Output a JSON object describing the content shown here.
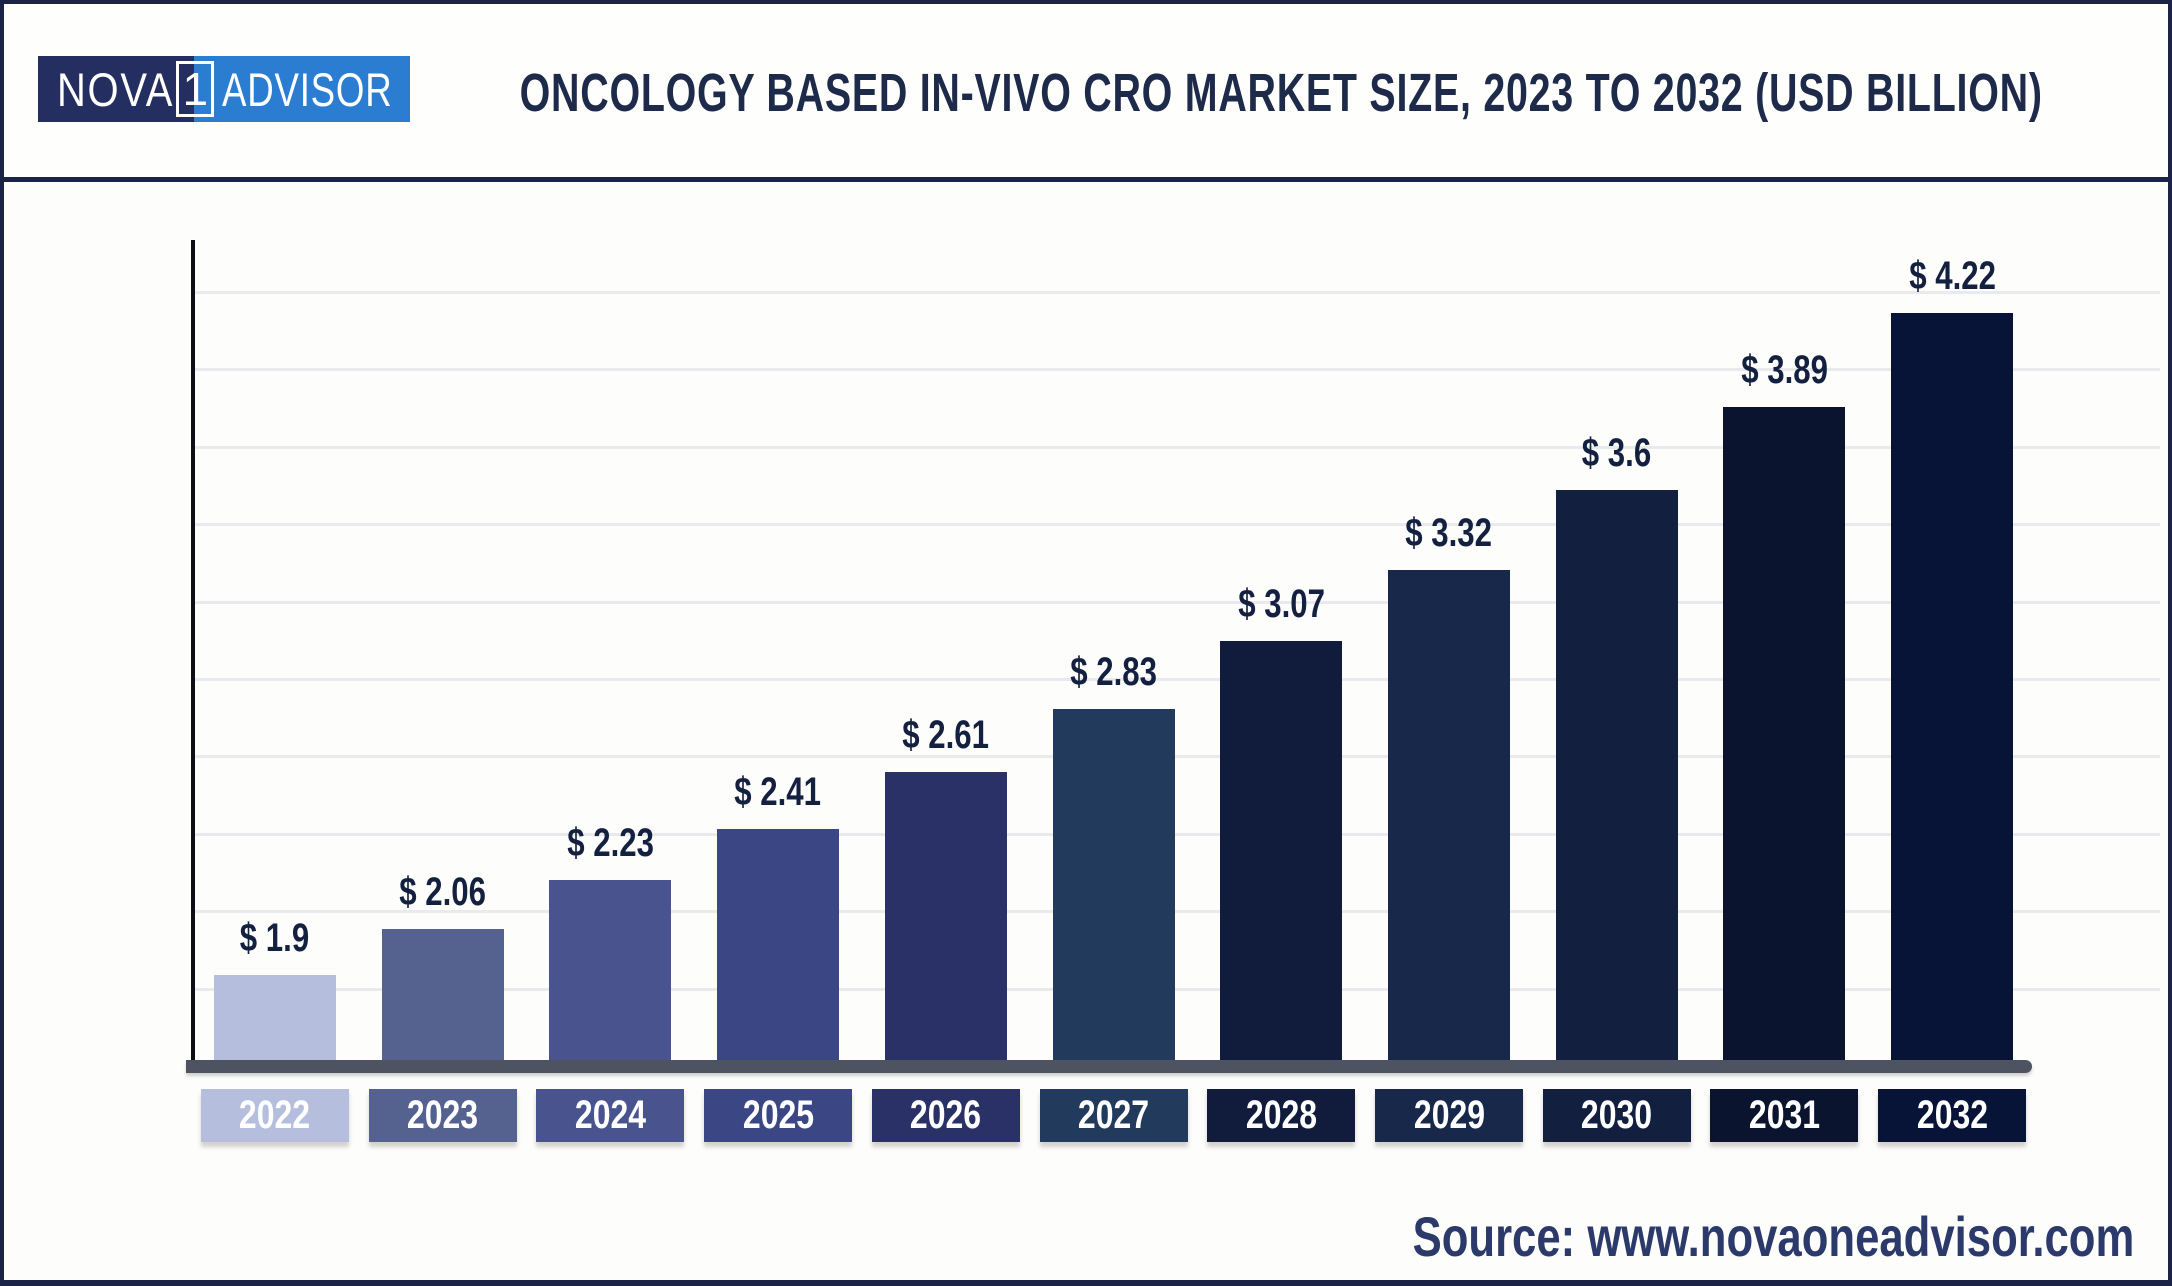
{
  "header": {
    "logo": {
      "part1": "NOVA",
      "badge": "1",
      "part2": "ADVISOR"
    },
    "title": "ONCOLOGY BASED IN-VIVO CRO MARKET SIZE, 2023 TO 2032 (USD BILLION)"
  },
  "footer": {
    "source": "Source: www.novaoneadvisor.com"
  },
  "colors": {
    "frame_border": "#1b2347",
    "title_text": "#1d2a4a",
    "value_label_text": "#14203f",
    "year_label_text": "#ffffff",
    "axis_line": "#0d0d15",
    "baseline_bar": "#4d5360",
    "gridline": "#e9eaee",
    "logo_dark": "#252e61",
    "logo_blue": "#2b7dd2",
    "source_text": "#2b3a6b"
  },
  "chart_data": {
    "type": "bar",
    "title": "Oncology Based In-Vivo CRO Market Size, 2023 to 2032 (USD Billion)",
    "unit": "USD Billion",
    "categories": [
      "2022",
      "2023",
      "2024",
      "2025",
      "2026",
      "2027",
      "2028",
      "2029",
      "2030",
      "2031",
      "2032"
    ],
    "values": [
      1.9,
      2.06,
      2.23,
      2.41,
      2.61,
      2.83,
      3.07,
      3.32,
      3.6,
      3.89,
      4.22
    ],
    "value_labels": [
      "$ 1.9",
      "$ 2.06",
      "$ 2.23",
      "$ 2.41",
      "$ 2.61",
      "$ 2.83",
      "$ 3.07",
      "$ 3.32",
      "$ 3.6",
      "$ 3.89",
      "$ 4.22"
    ],
    "bar_colors": [
      "#b6bedd",
      "#55618f",
      "#49548f",
      "#3b4784",
      "#2a3166",
      "#223a5c",
      "#111b3c",
      "#17284a",
      "#131f3e",
      "#0b142e",
      "#071337"
    ],
    "xlabel": "",
    "ylabel": "",
    "ylim": [
      1.6,
      4.35
    ],
    "grid": true,
    "gridline_count": 10,
    "legend": false,
    "y_axis_tick_labels": false
  }
}
